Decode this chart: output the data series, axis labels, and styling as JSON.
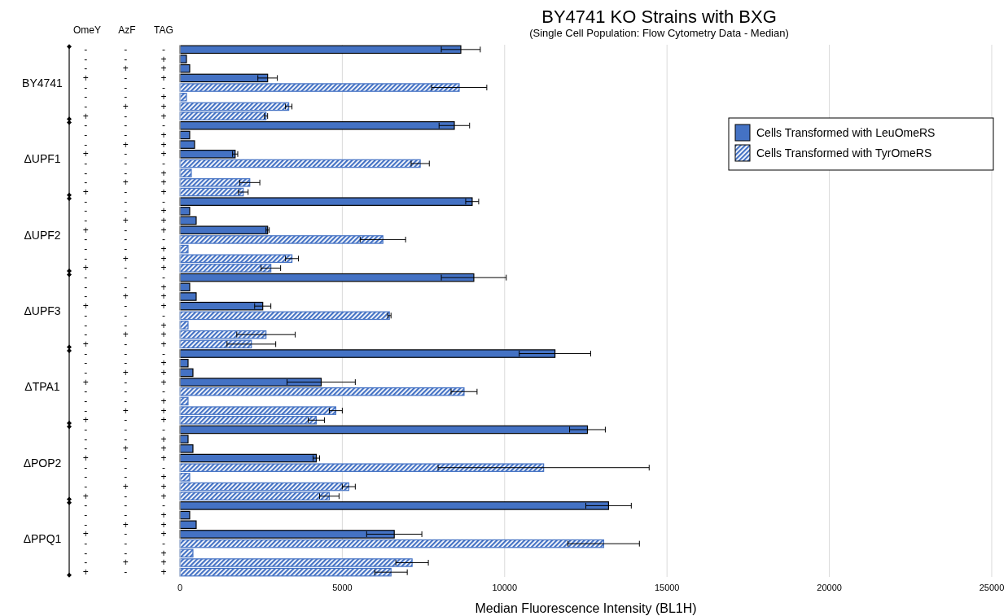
{
  "chart_data": {
    "type": "bar",
    "orientation": "horizontal",
    "title": "BY4741 KO Strains with BXG",
    "subtitle": "(Single Cell Population: Flow Cytometry Data - Median)",
    "xlabel": "Median Fluorescence Intensity (BL1H)",
    "categories": [
      "- - -",
      "- - +",
      "- + +",
      "+ - +",
      "- - -",
      "- - +",
      "- + +",
      "+ - +",
      "- - -",
      "- - +",
      "- + +",
      "+ - +",
      "- - -",
      "- - +",
      "- + +",
      "+ - +",
      "- - -",
      "- - +",
      "- + +",
      "+ - +",
      "- - -",
      "- - +",
      "- + +",
      "+ - +",
      "- - -",
      "- - +",
      "- + +",
      "+ - +",
      "- - -",
      "- - +",
      "- + +",
      "+ - +",
      "- - -",
      "- - +",
      "- + +",
      "+ - +",
      "- - -",
      "- - +",
      "- + +",
      "+ - +",
      "- - -",
      "- - +",
      "- + +",
      "+ - +",
      "- - -",
      "- - +",
      "- + +",
      "+ - +",
      "- - -",
      "- - +",
      "- + +",
      "+ - +",
      "- - -",
      "- - +",
      "- + +",
      "+ - +"
    ],
    "series": [
      {
        "name": "Cells Transformed with LeuOmeRS",
        "color": "#4472c4",
        "values": [
          8650,
          200,
          300,
          2700,
          null,
          null,
          null,
          null,
          8450,
          300,
          450,
          1700,
          null,
          null,
          null,
          null,
          9000,
          300,
          500,
          2700,
          null,
          null,
          null,
          null,
          9050,
          300,
          500,
          2550,
          null,
          null,
          null,
          null,
          11550,
          250,
          400,
          4350,
          null,
          null,
          null,
          null,
          12550,
          250,
          400,
          4200,
          null,
          null,
          null,
          null,
          13200,
          300,
          500,
          6600,
          null,
          null,
          null,
          null
        ],
        "errors": [
          600,
          null,
          null,
          300,
          null,
          null,
          null,
          null,
          470,
          null,
          null,
          80,
          null,
          null,
          null,
          null,
          200,
          null,
          null,
          50,
          null,
          null,
          null,
          null,
          1000,
          null,
          null,
          250,
          null,
          null,
          null,
          null,
          1100,
          null,
          null,
          1050,
          null,
          null,
          null,
          null,
          550,
          null,
          null,
          100,
          null,
          null,
          null,
          null,
          700,
          null,
          null,
          850,
          null,
          null,
          null,
          null
        ]
      },
      {
        "name": "Cells Transformed with TyrOmeRS",
        "color": "#4472c4",
        "values": [
          null,
          null,
          null,
          null,
          8600,
          200,
          3350,
          2650,
          null,
          null,
          null,
          null,
          7400,
          350,
          2150,
          1950,
          null,
          null,
          null,
          null,
          6250,
          250,
          3450,
          2800,
          null,
          null,
          null,
          null,
          6450,
          250,
          2650,
          2200,
          null,
          null,
          null,
          null,
          8750,
          250,
          4800,
          4200,
          null,
          null,
          null,
          null,
          11200,
          300,
          5200,
          4600,
          null,
          null,
          null,
          null,
          13050,
          400,
          7150,
          6500
        ],
        "errors": [
          null,
          null,
          null,
          null,
          850,
          null,
          100,
          50,
          null,
          null,
          null,
          null,
          280,
          null,
          310,
          150,
          null,
          null,
          null,
          null,
          700,
          null,
          200,
          300,
          null,
          null,
          null,
          null,
          50,
          null,
          900,
          750,
          null,
          null,
          null,
          null,
          400,
          null,
          200,
          250,
          null,
          null,
          null,
          null,
          3250,
          null,
          200,
          300,
          null,
          null,
          null,
          null,
          1100,
          null,
          500,
          500
        ]
      }
    ],
    "xlim": [
      0,
      25000
    ],
    "xticks": [
      0,
      5000,
      10000,
      15000,
      20000,
      25000
    ],
    "grid": "x",
    "legend": "top right",
    "annotations": [
      "OmeY",
      "AzF",
      "TAG",
      "BY4741",
      "ΔUPF1",
      "ΔUPF2",
      "ΔUPF3",
      "ΔTPA1",
      "ΔPOP2",
      "ΔPPQ1"
    ]
  }
}
